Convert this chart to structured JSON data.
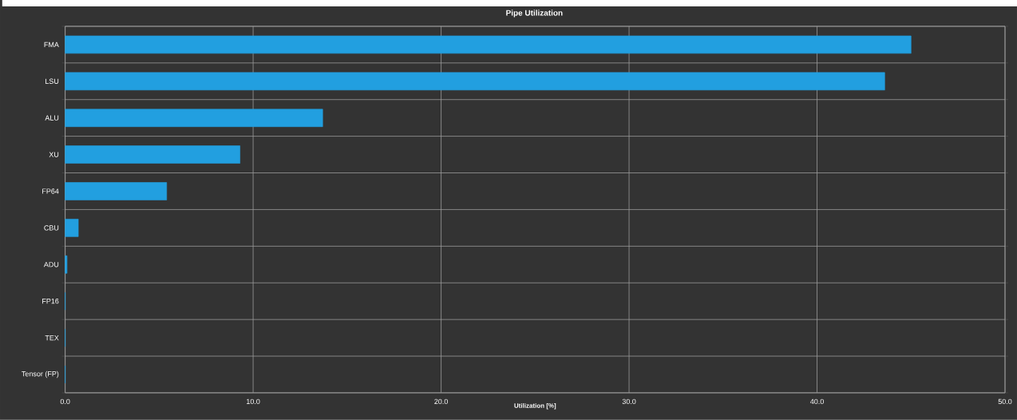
{
  "chart_data": {
    "type": "bar",
    "orientation": "horizontal",
    "title": "Pipe Utilization",
    "xlabel": "Utilization [%]",
    "categories": [
      "FMA",
      "LSU",
      "ALU",
      "XU",
      "FP64",
      "CBU",
      "ADU",
      "FP16",
      "TEX",
      "Tensor (FP)"
    ],
    "values": [
      45.0,
      43.6,
      13.7,
      9.3,
      5.4,
      0.7,
      0.1,
      0,
      0,
      0
    ],
    "color": "#229fe0",
    "xlim": [
      0,
      50
    ],
    "xticks": [
      {
        "value": 0,
        "label": "0.0"
      },
      {
        "value": 10,
        "label": "10.0"
      },
      {
        "value": 20,
        "label": "20.0"
      },
      {
        "value": 30,
        "label": "30.0"
      },
      {
        "value": 40,
        "label": "40.0"
      },
      {
        "value": 50,
        "label": "50.0"
      }
    ],
    "grid": true
  }
}
